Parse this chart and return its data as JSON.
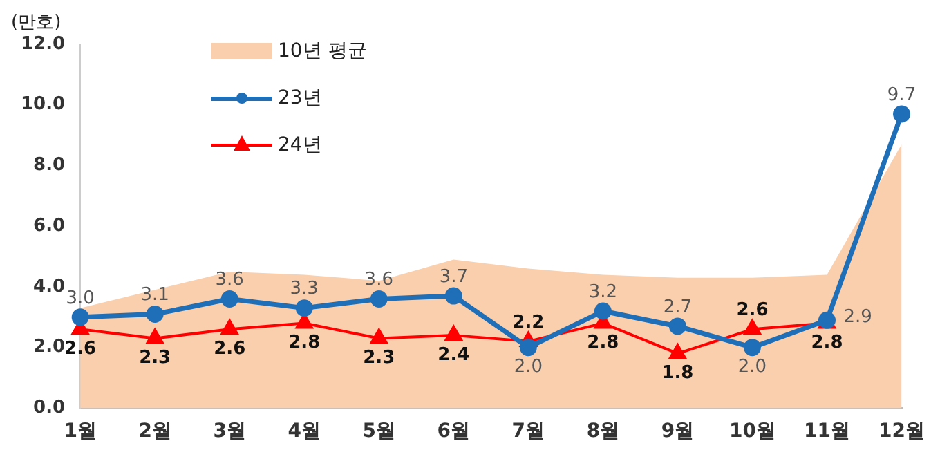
{
  "chart_data": {
    "type": "line",
    "ylabel": "(만호)",
    "categories": [
      "1월",
      "2월",
      "3월",
      "4월",
      "5월",
      "6월",
      "7월",
      "8월",
      "9월",
      "10월",
      "11월",
      "12월"
    ],
    "series": [
      {
        "name": "10년 평균",
        "type": "area",
        "color": "#f9cfae",
        "values": [
          3.3,
          3.9,
          4.5,
          4.4,
          4.2,
          4.9,
          4.6,
          4.4,
          4.3,
          4.3,
          4.4,
          8.7
        ]
      },
      {
        "name": "23년",
        "color": "#1f6fb8",
        "marker": "circle",
        "values": [
          3.0,
          3.1,
          3.6,
          3.3,
          3.6,
          3.7,
          2.0,
          3.2,
          2.7,
          2.0,
          2.9,
          9.7
        ],
        "value_labels": [
          "3.0",
          "3.1",
          "3.6",
          "3.3",
          "3.6",
          "3.7",
          "2.0",
          "3.2",
          "2.7",
          "2.0",
          "2.9",
          "9.7"
        ]
      },
      {
        "name": "24년",
        "color": "#ff0000",
        "marker": "triangle",
        "values": [
          2.6,
          2.3,
          2.6,
          2.8,
          2.3,
          2.4,
          2.2,
          2.8,
          1.8,
          2.6,
          2.8,
          null
        ],
        "value_labels": [
          "2.6",
          "2.3",
          "2.6",
          "2.8",
          "2.3",
          "2.4",
          "2.2",
          "2.8",
          "1.8",
          "2.6",
          "2.8",
          null
        ]
      }
    ],
    "ylim": [
      0,
      12
    ],
    "yticks": [
      {
        "value": 0,
        "label": "0.0"
      },
      {
        "value": 2,
        "label": "2.0"
      },
      {
        "value": 4,
        "label": "4.0"
      },
      {
        "value": 6,
        "label": "6.0"
      },
      {
        "value": 8,
        "label": "8.0"
      },
      {
        "value": 10,
        "label": "10.0"
      },
      {
        "value": 12,
        "label": "12.0"
      }
    ],
    "grid": false,
    "legend": "top left"
  }
}
